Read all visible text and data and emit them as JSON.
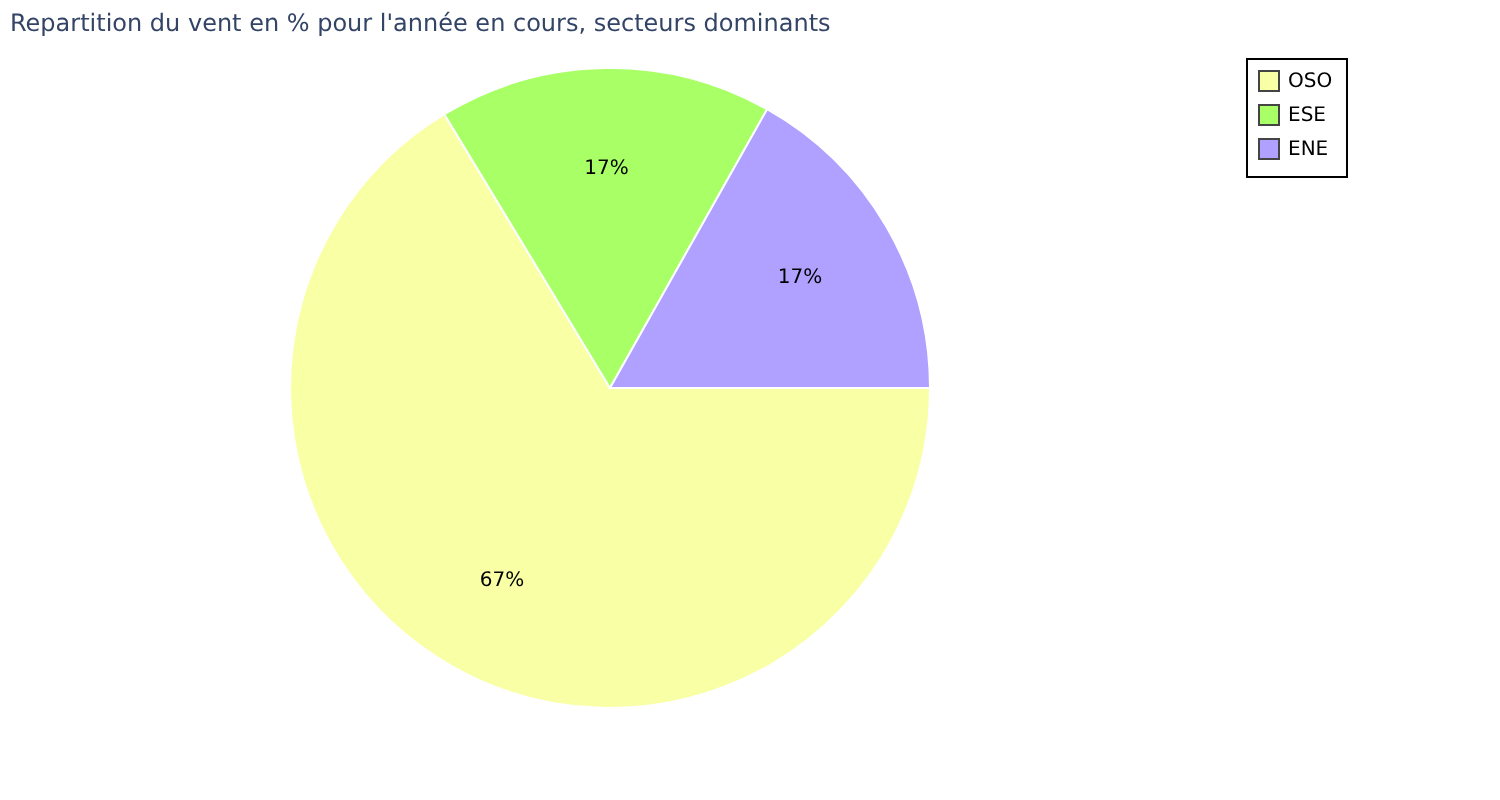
{
  "chart_data": {
    "type": "pie",
    "title": "Repartition du vent en % pour l'année en cours, secteurs dominants",
    "categories": [
      "OSO",
      "ESE",
      "ENE"
    ],
    "values": [
      67,
      17,
      17
    ],
    "colors": [
      "#f9ffa5",
      "#a8ff66",
      "#b0a0ff"
    ],
    "value_labels": [
      "67%",
      "17%",
      "17%"
    ],
    "legend": "right"
  }
}
